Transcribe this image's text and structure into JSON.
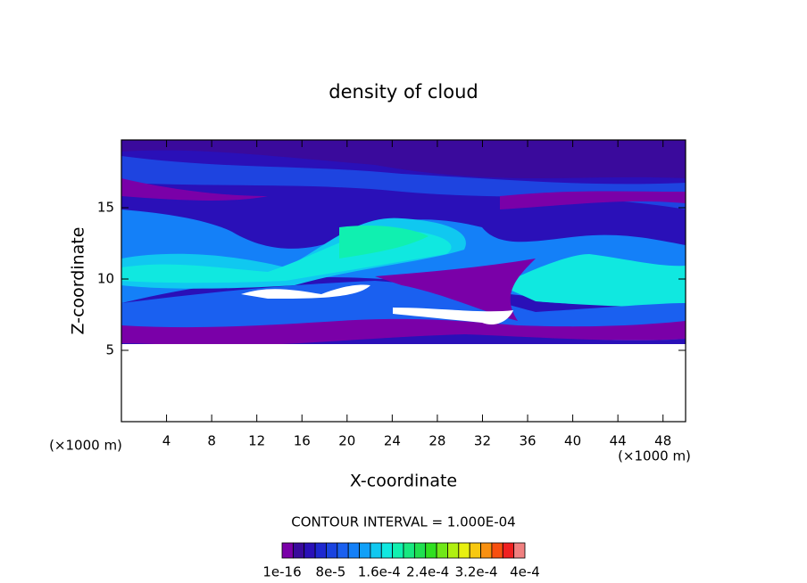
{
  "chart_data": {
    "type": "contour",
    "title": "density of cloud",
    "xlabel": "X-coordinate",
    "ylabel": "Z-coordinate",
    "x_unit": "(×1000 m)",
    "x_unit_right": "(×1000 m)",
    "annotation": "CONTOUR INTERVAL = 1.000E-04",
    "xlim": [
      0,
      50
    ],
    "xticks": [
      4,
      8,
      12,
      16,
      20,
      24,
      28,
      32,
      36,
      40,
      44,
      48
    ],
    "ylim": [
      0,
      19.75
    ],
    "yticks": [
      5,
      10,
      15
    ],
    "colorbar": {
      "clim": [
        0,
        0.0004
      ],
      "colors": [
        "#7a00a8",
        "#3a0a9c",
        "#2a10b8",
        "#1e28d0",
        "#1a44e0",
        "#1a60f0",
        "#1480f8",
        "#10a0f8",
        "#10c8f0",
        "#10e8e0",
        "#10f0b0",
        "#18e880",
        "#20e050",
        "#30e020",
        "#70e818",
        "#b0f010",
        "#e8f010",
        "#f8c810",
        "#f89010",
        "#f85010",
        "#f02020",
        "#f08080"
      ],
      "ticks": [
        {
          "value": 1e-16,
          "label": "1e-16"
        },
        {
          "value": 8e-05,
          "label": "8e-5"
        },
        {
          "value": 0.00016,
          "label": "1.6e-4"
        },
        {
          "value": 0.00024,
          "label": "2.4e-4"
        },
        {
          "value": 0.00032,
          "label": "3.2e-4"
        },
        {
          "value": 0.0004,
          "label": "4e-4"
        }
      ]
    }
  }
}
